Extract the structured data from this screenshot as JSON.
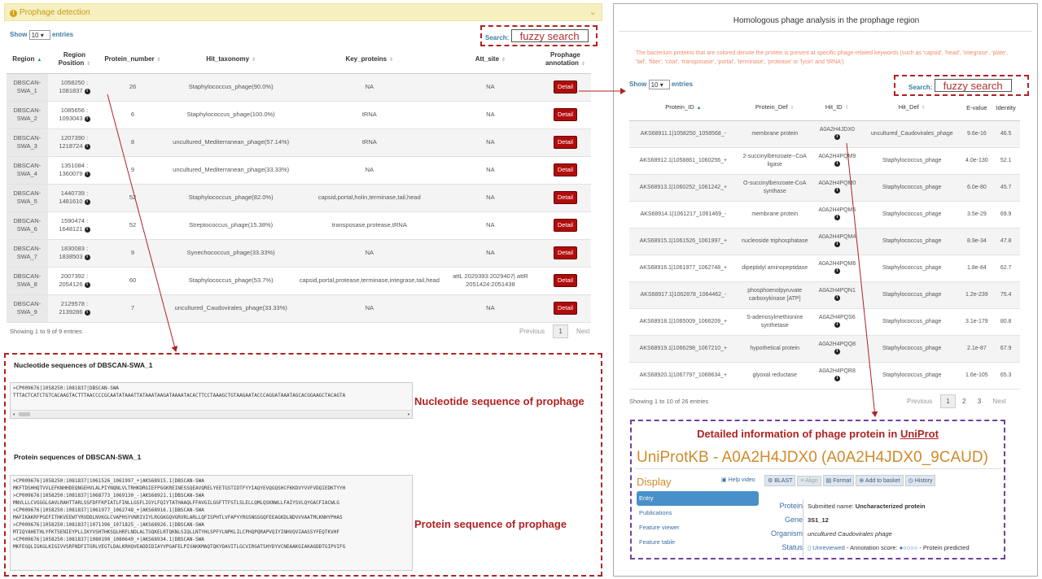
{
  "left": {
    "panel_title": "Prophage detection",
    "show_label": "Show",
    "show_value": "10",
    "entries_label": "entries",
    "search_label": "Search:",
    "search_value": "fuzzy search",
    "columns": [
      "Region",
      "Region Position",
      "Protein_number",
      "Hit_taxonomy",
      "Key_proteins",
      "Att_site",
      "Prophage annotation"
    ],
    "rows": [
      {
        "region": "DBSCAN-SWA_1",
        "pos": "1058250 : 1081837",
        "num": "26",
        "tax": "Staphylococcus_phage(90.0%)",
        "key": "NA",
        "att": "NA"
      },
      {
        "region": "DBSCAN-SWA_2",
        "pos": "1085656 : 1093043",
        "num": "6",
        "tax": "Staphylococcus_phage(100.0%)",
        "key": "tRNA",
        "att": "NA"
      },
      {
        "region": "DBSCAN-SWA_3",
        "pos": "1207390 : 1218724",
        "num": "8",
        "tax": "uncultured_Mediterranean_phage(57.14%)",
        "key": "tRNA",
        "att": "NA"
      },
      {
        "region": "DBSCAN-SWA_4",
        "pos": "1351084 : 1360079",
        "num": "9",
        "tax": "uncultured_Mediterranean_phage(33.33%)",
        "key": "NA",
        "att": "NA"
      },
      {
        "region": "DBSCAN-SWA_5",
        "pos": "1440739 : 1481610",
        "num": "52",
        "tax": "Staphylococcus_phage(82.0%)",
        "key": "capsid,portal,holin,terminase,tail,head",
        "att": "NA"
      },
      {
        "region": "DBSCAN-SWA_6",
        "pos": "1590474 : 1648121",
        "num": "52",
        "tax": "Streptococcus_phage(15.38%)",
        "key": "transposase,protease,tRNA",
        "att": "NA"
      },
      {
        "region": "DBSCAN-SWA_7",
        "pos": "1830083 : 1838503",
        "num": "9",
        "tax": "Synechococcus_phage(33.33%)",
        "key": "NA",
        "att": "NA"
      },
      {
        "region": "DBSCAN-SWA_8",
        "pos": "2007392 : 2054126",
        "num": "60",
        "tax": "Staphylococcus_phage(53.7%)",
        "key": "capsid,portal,protease,terminase,integrase,tail,head",
        "att": "attL 2029393:2029407| attR 2051424:2051438"
      },
      {
        "region": "DBSCAN-SWA_9",
        "pos": "2129578 : 2139286",
        "num": "7",
        "tax": "uncultured_Caudovirales_phage(33.33%)",
        "key": "NA",
        "att": "NA"
      }
    ],
    "detail_label": "Detail",
    "showing_text": "Showing 1 to 9 of 9 entries",
    "prev": "Previous",
    "page": "1",
    "next": "Next"
  },
  "nucleotide": {
    "title": "Nucleotide sequences of DBSCAN-SWA_1",
    "lines": [
      ">CP009676|1058250:1081837|DBSCAN-SWA",
      "TTTACTCATCTGTCACAAGTACTTTAACCCCGCAATATAAATTATAAATAAGATAAAATACACTTCCTAAAGCTGTAAGAATACCCAGGATAAATAGCACGGAAGCTACAGTA"
    ],
    "caption": "Nucleotide sequence of prophage"
  },
  "protein": {
    "title": "Protein sequences of DBSCAN-SWA_1",
    "lines": [
      ">CP009676|1058250:1081837|1061526_1061997_+|AKS68915.1|DBSCAN-SWA",
      "MKFTDSHHQTVVLEFKNHHDEQNGEHVLALPIYNQNLVLTRHKDRGIEFPGGKREINESSQEAVQRELYEETGSTIDTFYYIAQYEVQGQSHCFKKDVYVVFVDQIEDKTYYH",
      ">CP009676|1058250:1081837|1068773_1069130_-|AKS68921.1|DBSCAN-SWA",
      "MNVLLLCVGGGLGAVLRAHTTARLSSFDFFKPIATLFINLLGSFLIGYLFQIYTATHAAQLFFAVGILGGFTTFSTLSLELLQMLQSKNWLLFAIYSVLQYGACFIACWLG",
      ">CP009676|1058250:1081837|1061977_1062748_+|AKS68916.1|DBSCAN-SWA",
      "MAFIKAKRFPGEFITHKVEEWTYRVDDLNVKGLCVAPHSYVNRIVIYLRGGKGQVGRVRLARLLQFISPHTLVFAPYYRGSNGSGQFEEAGKDLNDVVVAATMLKNHYPHAS",
      ">CP009676|1058250:1081837|1071396_1071825_-|AKS68926.1|DBSCAN-SWA",
      "MTIQYAHETHLYFKTSENIEYPLLIKYVSHTHKSQLHRFLNDLALTSQKELRTQKNLSIQLLNTYHLSPFYLNPKLILCPHQPQRAPVQIYINHVQVIAASSYFEQTKVHF",
      ">CP009676|1058250:1081837|1080190_1080649_+|AKS68934.1|DBSCAN-SWA",
      "MKFEGQLIGKGLKIGIVVSRFNDFITGRLVEGTLDALKRHQVEADDIDIAYVPGAFELPIVAKKMAQTQKYDAVITLGCVIRGATSHYDYVCNEAAKGIAKAGDDTGIPVIFG"
    ],
    "caption": "Protein sequence of prophage"
  },
  "right": {
    "title": "Homologous phage analysis in the prophage region",
    "note": "The bacterium proteins that are colored denote the protein is present at specific phage-related keywords (such as 'capsid', 'head', 'integrase', 'plate', 'tail', 'fiber', 'coat', 'transposase', 'portal', 'terminase', 'protease' or 'lysin' and 'tRNA')",
    "show_label": "Show",
    "show_value": "10",
    "entries_label": "entries",
    "search_label": "Search:",
    "search_value": "fuzzy search",
    "columns": [
      "Protein_ID",
      "Protein_Def",
      "Hit_ID",
      "Hit_Def",
      "E-value",
      "Identity"
    ],
    "rows": [
      {
        "pid": "AKS68911.1|1058250_1058568_-",
        "def": "membrane protein",
        "hit": "A0A2H4JDX0",
        "hdef": "uncultured_Caudovirales_phage",
        "e": "9.6e-16",
        "id": "46.5"
      },
      {
        "pid": "AKS68912.1|1058861_1060256_+",
        "def": "2-succinylbenzoate--CoA ligase",
        "hit": "A0A2H4PQM9",
        "hdef": "Staphylococcus_phage",
        "e": "4.0e-130",
        "id": "52.1"
      },
      {
        "pid": "AKS68913.1|1060252_1061242_+",
        "def": "O-succinylbenzoate-CoA synthase",
        "hit": "A0A2H4PQM0",
        "hdef": "Staphylococcus_phage",
        "e": "6.0e-80",
        "id": "45.7"
      },
      {
        "pid": "AKS68914.1|1061217_1061469_-",
        "def": "membrane protein",
        "hit": "A0A2H4PQM5",
        "hdef": "Staphylococcus_phage",
        "e": "3.5e-29",
        "id": "69.9"
      },
      {
        "pid": "AKS68915.1|1061526_1061997_+",
        "def": "nucleoside triphosphatase",
        "hit": "A0A2H4PQM4",
        "hdef": "Staphylococcus_phage",
        "e": "8.9e-34",
        "id": "47.8"
      },
      {
        "pid": "AKS68916.1|1061977_1062748_+",
        "def": "dipeptidyl aminopeptidase",
        "hit": "A0A2H4PQM6",
        "hdef": "Staphylococcus_phage",
        "e": "1.8e-84",
        "id": "62.7"
      },
      {
        "pid": "AKS68917.1|1062878_1064462_-",
        "def": "phosphoenolpyruvate carboxykinase [ATP]",
        "hit": "A0A2H4PQN1",
        "hdef": "Staphylococcus_phage",
        "e": "1.2e-239",
        "id": "75.4"
      },
      {
        "pid": "AKS68918.1|1065009_1066209_+",
        "def": "S-adenosylmethionine synthetase",
        "hit": "A0A2H4PQS6",
        "hdef": "Staphylococcus_phage",
        "e": "3.1e-179",
        "id": "80.8"
      },
      {
        "pid": "AKS68919.1|1066298_1067210_+",
        "def": "hypothetical protein",
        "hit": "A0A2H4PQQ8",
        "hdef": "Staphylococcus_phage",
        "e": "2.1e-87",
        "id": "67.9"
      },
      {
        "pid": "AKS68920.1|1067797_1068634_+",
        "def": "glyoxal reductase",
        "hit": "A0A2H4PQR8",
        "hdef": "Staphylococcus_phage",
        "e": "1.6e-105",
        "id": "65.3"
      }
    ],
    "showing_text": "Showing 1 to 10 of 26 entries",
    "prev": "Previous",
    "pages": [
      "1",
      "2",
      "3"
    ],
    "next": "Next"
  },
  "uniprot": {
    "caption_pre": "Detailed information of phage protein in ",
    "caption_link": "UniProt",
    "title": "UniProtKB - A0A2H4JDX0 (A0A2H4JDX0_9CAUD)",
    "display": "Display",
    "help": "Help video",
    "tabs": [
      "BLAST",
      "Align",
      "Format",
      "Add to basket",
      "History"
    ],
    "side": [
      "Entry",
      "Publications",
      "Feature viewer",
      "Feature table"
    ],
    "fields": [
      {
        "label": "Protein",
        "value": "Submitted name: ",
        "strong": "Uncharacterized protein"
      },
      {
        "label": "Gene",
        "value": "",
        "strong": "3S1_12"
      },
      {
        "label": "Organism",
        "value": "uncultured Caudovirales phage",
        "strong": ""
      },
      {
        "label": "Status",
        "value": "Unreviewed",
        "strong": ""
      }
    ],
    "annotation": "- Annotation score:",
    "predicted": "- Protein predicted",
    "score_dots": "●○○○○"
  },
  "colors": {
    "accent_red": "#b22222",
    "panel_header": "#f6efbf",
    "detail_btn": "#b00c0c",
    "uniprot_title": "#d08a2a",
    "purple": "#7040a0"
  }
}
